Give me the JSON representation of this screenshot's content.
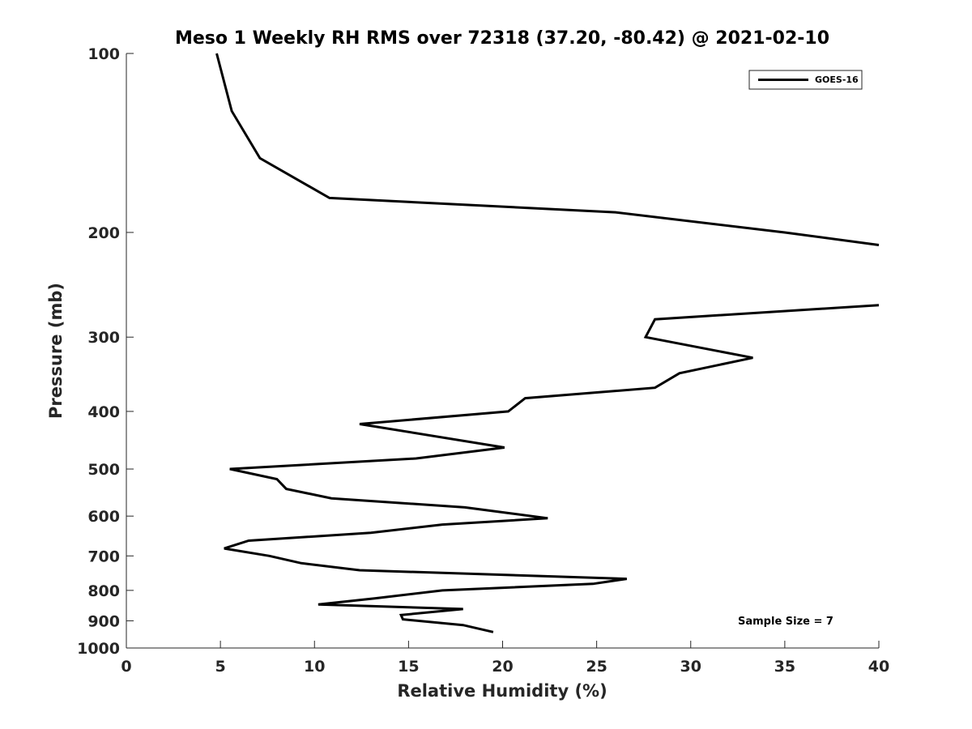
{
  "chart_data": {
    "type": "line",
    "title": "Meso 1 Weekly RH RMS over 72318 (37.20, -80.42) @ 2021-02-10",
    "xlabel": "Relative Humidity (%)",
    "ylabel": "Pressure (mb)",
    "xlim": [
      0,
      40
    ],
    "ylim": [
      100,
      1000
    ],
    "y_scale": "log",
    "y_reversed": true,
    "x_ticks": [
      0,
      5,
      10,
      15,
      20,
      25,
      30,
      35,
      40
    ],
    "y_ticks": [
      100,
      200,
      300,
      400,
      500,
      600,
      700,
      800,
      900,
      1000
    ],
    "grid": false,
    "legend_position": "top-right",
    "annotation": "Sample Size = 7",
    "series": [
      {
        "name": "GOES-16",
        "color": "#000000",
        "segments": [
          [
            [
              4.8,
              100
            ],
            [
              5.6,
              125
            ],
            [
              7.1,
              150
            ],
            [
              10.8,
              175
            ],
            [
              26.0,
              185
            ],
            [
              35.0,
              200
            ],
            [
              40.0,
              210
            ]
          ],
          [
            [
              40.0,
              265
            ],
            [
              28.1,
              280
            ],
            [
              27.6,
              300
            ],
            [
              33.3,
              325
            ],
            [
              29.4,
              345
            ],
            [
              28.1,
              365
            ],
            [
              21.2,
              380
            ],
            [
              20.3,
              400
            ],
            [
              12.4,
              420
            ],
            [
              20.1,
              460
            ],
            [
              15.4,
              480
            ],
            [
              5.5,
              500
            ],
            [
              8.0,
              520
            ],
            [
              8.5,
              540
            ],
            [
              10.9,
              560
            ],
            [
              18.0,
              580
            ],
            [
              22.4,
              605
            ],
            [
              16.8,
              620
            ],
            [
              13.0,
              640
            ],
            [
              6.5,
              660
            ],
            [
              5.2,
              680
            ],
            [
              7.6,
              700
            ],
            [
              9.3,
              720
            ],
            [
              12.4,
              740
            ],
            [
              26.6,
              765
            ],
            [
              24.8,
              780
            ],
            [
              16.8,
              800
            ],
            [
              13.2,
              825
            ],
            [
              10.2,
              845
            ],
            [
              17.9,
              860
            ],
            [
              14.6,
              880
            ],
            [
              14.7,
              895
            ],
            [
              17.9,
              915
            ],
            [
              19.5,
              940
            ]
          ]
        ]
      }
    ]
  }
}
